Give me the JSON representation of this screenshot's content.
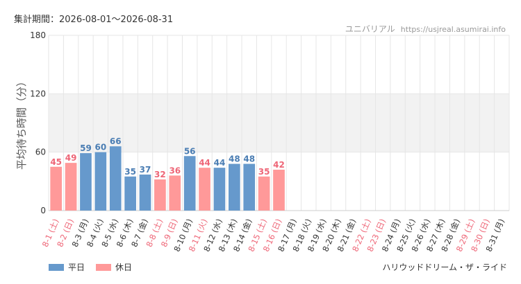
{
  "header": {
    "period_label": "集計期間：2026-08-01～2026-08-31",
    "source_name": "ユニバリアル",
    "source_url": "https://usjreal.asumirai.info"
  },
  "legend": {
    "weekday_label": "平日",
    "holiday_label": "休日"
  },
  "footer": {
    "attraction": "ハリウッドドリーム・ザ・ライド"
  },
  "colors": {
    "weekday": "#6699cc",
    "holiday": "#ff9999",
    "weekday_text": "#4a7db3",
    "holiday_text": "#ee6677",
    "band": "#f2f2f2"
  },
  "chart_data": {
    "type": "bar",
    "ylabel": "平均待ち時間（分）",
    "xlabel": "",
    "ylim": [
      0,
      180
    ],
    "yticks": [
      0,
      60,
      120,
      180
    ],
    "shaded_band": [
      60,
      120
    ],
    "categories": [
      "8-1 (土)",
      "8-2 (日)",
      "8-3 (月)",
      "8-4 (火)",
      "8-5 (水)",
      "8-6 (木)",
      "8-7 (金)",
      "8-8 (土)",
      "8-9 (日)",
      "8-10 (月)",
      "8-11 (火)",
      "8-12 (水)",
      "8-13 (木)",
      "8-14 (金)",
      "8-15 (土)",
      "8-16 (日)",
      "8-17 (月)",
      "8-18 (火)",
      "8-19 (水)",
      "8-20 (木)",
      "8-21 (金)",
      "8-22 (土)",
      "8-23 (日)",
      "8-24 (月)",
      "8-25 (火)",
      "8-26 (水)",
      "8-27 (木)",
      "8-28 (金)",
      "8-29 (土)",
      "8-30 (日)",
      "8-31 (月)"
    ],
    "holiday": [
      true,
      true,
      false,
      false,
      false,
      false,
      false,
      true,
      true,
      false,
      true,
      false,
      false,
      false,
      true,
      true,
      false,
      false,
      false,
      false,
      false,
      true,
      true,
      false,
      false,
      false,
      false,
      false,
      true,
      true,
      false
    ],
    "values": [
      45,
      49,
      59,
      60,
      66,
      35,
      37,
      32,
      36,
      56,
      44,
      44,
      48,
      48,
      35,
      42,
      null,
      null,
      null,
      null,
      null,
      null,
      null,
      null,
      null,
      null,
      null,
      null,
      null,
      null,
      null
    ],
    "grid": true,
    "legend_position": "bottom-left"
  }
}
